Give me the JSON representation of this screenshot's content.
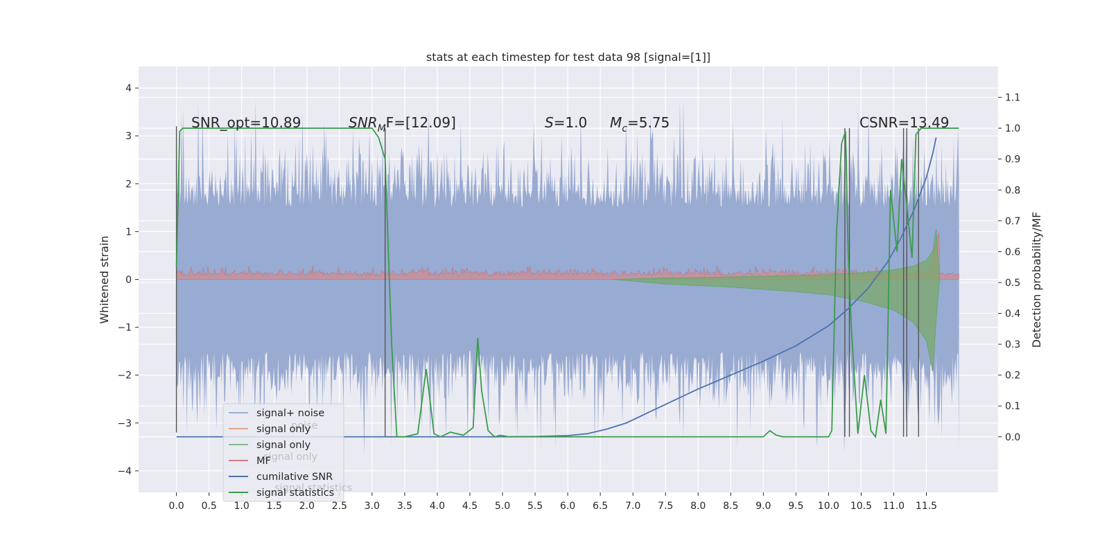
{
  "chart_data": {
    "type": "line",
    "title": "stats at each timestep for test data 98 [signal=[1]]",
    "ylabel": "Whitened strain",
    "y2label": "Detection probability/MF",
    "xlim": [
      -0.58,
      12.6
    ],
    "ylim": [
      -4.45,
      4.45
    ],
    "y2lim": [
      -0.18,
      1.2
    ],
    "x_ticks": [
      "0.0",
      "0.5",
      "1.0",
      "1.5",
      "2.0",
      "2.5",
      "3.0",
      "3.5",
      "4.0",
      "4.5",
      "5.0",
      "5.5",
      "6.0",
      "6.5",
      "7.0",
      "7.5",
      "8.0",
      "8.5",
      "9.0",
      "9.5",
      "10.0",
      "10.5",
      "11.0",
      "11.5"
    ],
    "y_ticks": [
      "4",
      "3",
      "2",
      "1",
      "0",
      "−1",
      "−2",
      "−3",
      "−4"
    ],
    "y_tick_values": [
      4,
      3,
      2,
      1,
      0,
      -1,
      -2,
      -3,
      -4
    ],
    "y2_ticks": [
      "1.1",
      "1.0",
      "0.9",
      "0.8",
      "0.7",
      "0.6",
      "0.5",
      "0.4",
      "0.3",
      "0.2",
      "0.1",
      "0.0"
    ],
    "y2_tick_values": [
      1.1,
      1.0,
      0.9,
      0.8,
      0.7,
      0.6,
      0.5,
      0.4,
      0.3,
      0.2,
      0.1,
      0.0
    ],
    "grid": true,
    "legend_position": "lower-left",
    "annotations": {
      "snr_opt": "SNR_opt=10.89",
      "snr_mf_base": "SNR",
      "snr_mf_sub": "M",
      "snr_mf_rest": "F=[12.09]",
      "s_label": "S",
      "s_rest": "=1.0",
      "mc_label": "M",
      "mc_sub": "c",
      "mc_rest": "=5.75",
      "csnr": "CSNR=13.49"
    },
    "legend": [
      {
        "label": "signal+ noise",
        "color": "#4c72b0",
        "opacity": 0.5
      },
      {
        "label": "signal only",
        "color": "#dd8452",
        "opacity": 0.7
      },
      {
        "label": "signal only",
        "color": "#55a868",
        "opacity": 0.7
      },
      {
        "label": "MF",
        "color": "#c44e52",
        "opacity": 0.7
      },
      {
        "label": "cumilative SNR",
        "color": "#4c72b0",
        "opacity": 1
      },
      {
        "label": "signal statistics",
        "color": "#3a9b4a",
        "opacity": 1
      }
    ],
    "ghost_legend": [
      "noise",
      "signal only",
      "signal statistics"
    ],
    "vertical_lines_x": [
      0.0,
      3.2,
      10.25,
      10.32,
      11.15,
      11.2,
      11.38
    ],
    "cumulative_snr": {
      "x": [
        0.0,
        5.0,
        5.5,
        6.0,
        6.3,
        6.6,
        6.9,
        7.2,
        7.5,
        8.0,
        8.5,
        9.0,
        9.5,
        10.0,
        10.3,
        10.6,
        10.9,
        11.1,
        11.3,
        11.5,
        11.6,
        11.65
      ],
      "y2": [
        0.0,
        0.0,
        0.001,
        0.004,
        0.01,
        0.025,
        0.045,
        0.075,
        0.105,
        0.155,
        0.2,
        0.245,
        0.295,
        0.36,
        0.415,
        0.48,
        0.565,
        0.64,
        0.73,
        0.84,
        0.92,
        0.97
      ]
    },
    "signal_statistics": {
      "x": [
        0.0,
        0.05,
        0.1,
        3.0,
        3.1,
        3.2,
        3.3,
        3.38,
        3.5,
        3.7,
        3.83,
        3.95,
        4.05,
        4.2,
        4.4,
        4.55,
        4.62,
        4.68,
        4.78,
        4.88,
        4.97,
        5.1,
        5.5,
        6.5,
        7.0,
        9.0,
        9.1,
        9.2,
        9.3,
        10.0,
        10.05,
        10.12,
        10.2,
        10.26,
        10.3,
        10.35,
        10.45,
        10.55,
        10.65,
        10.72,
        10.8,
        10.88,
        10.95,
        11.05,
        11.12,
        11.2,
        11.28,
        11.34,
        11.42,
        11.5,
        12.0
      ],
      "y2": [
        0.55,
        0.99,
        1.0,
        1.0,
        0.97,
        0.9,
        0.3,
        0.0,
        0.0,
        0.01,
        0.22,
        0.01,
        0.0,
        0.015,
        0.005,
        0.03,
        0.32,
        0.15,
        0.02,
        0.0,
        0.005,
        0.0,
        0.0,
        0.0,
        0.0,
        0.0,
        0.02,
        0.005,
        0.0,
        0.0,
        0.02,
        0.65,
        0.95,
        0.99,
        0.6,
        0.35,
        0.01,
        0.2,
        0.02,
        0.0,
        0.12,
        0.01,
        0.8,
        0.6,
        0.9,
        0.75,
        0.58,
        0.98,
        1.0,
        1.0,
        1.0
      ]
    },
    "signal_envelope": {
      "x": [
        6.7,
        7.5,
        8.5,
        9.5,
        10.0,
        10.5,
        11.0,
        11.3,
        11.5,
        11.6,
        11.65,
        11.7
      ],
      "half_width": [
        0.0,
        0.03,
        0.05,
        0.08,
        0.1,
        0.14,
        0.2,
        0.28,
        0.4,
        0.6,
        1.05,
        0.05
      ]
    }
  }
}
